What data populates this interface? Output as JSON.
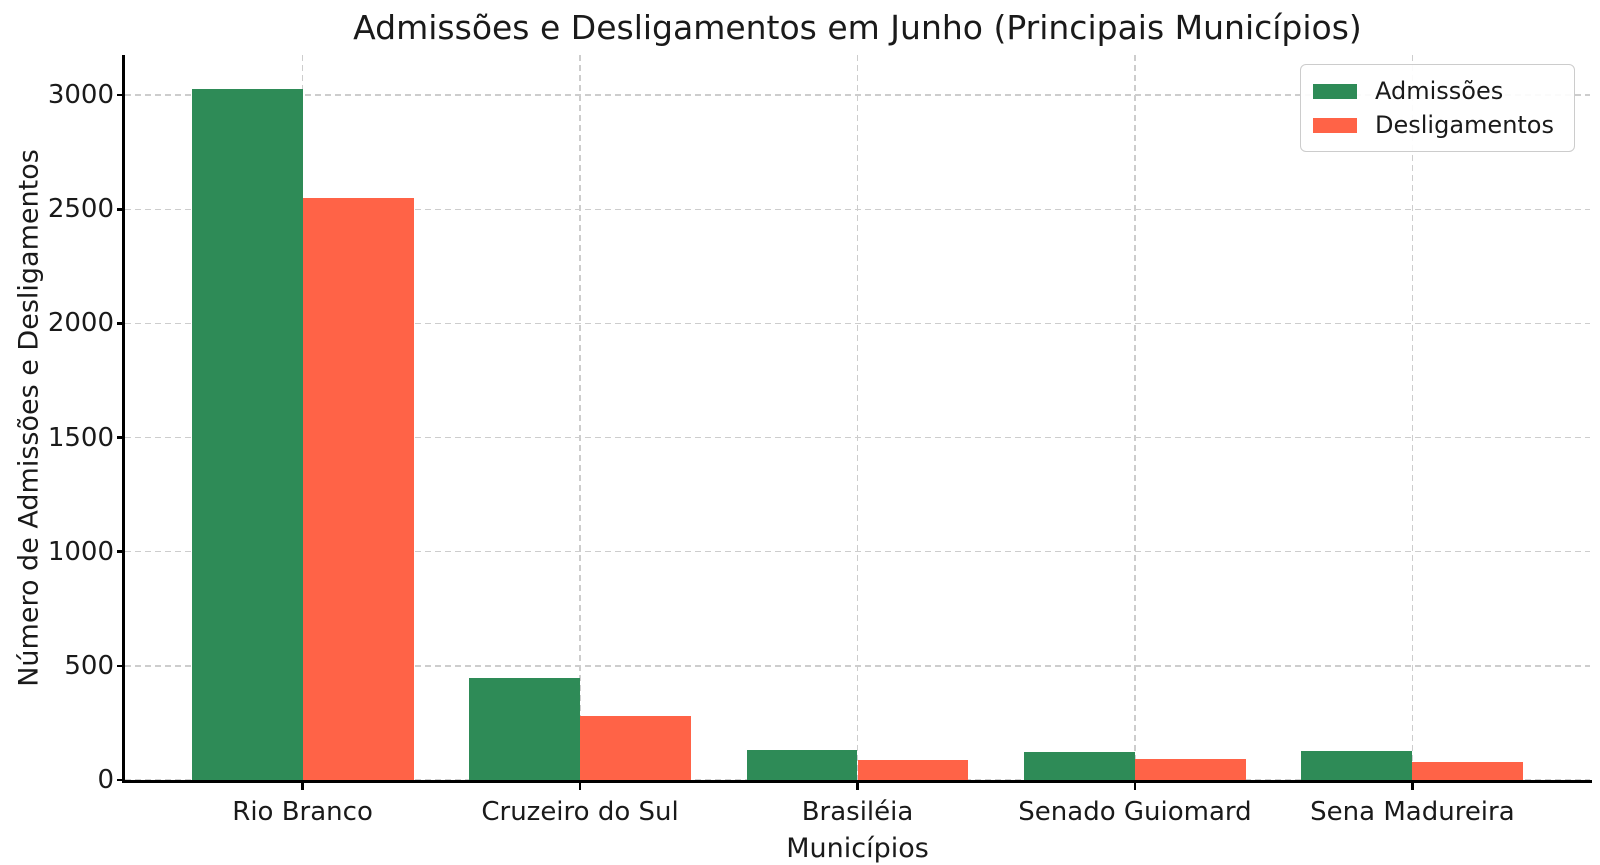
{
  "chart_data": {
    "type": "bar",
    "title": "Admissões e Desligamentos em Junho (Principais Municípios)",
    "xlabel": "Municípios",
    "ylabel": "Número de Admissões e Desligamentos",
    "categories": [
      "Rio Branco",
      "Cruzeiro do Sul",
      "Brasiléia",
      "Senado Guiomard",
      "Sena Madureira"
    ],
    "series": [
      {
        "name": "Admissões",
        "color": "#2e8b57",
        "values": [
          3025,
          445,
          130,
          124,
          127
        ]
      },
      {
        "name": "Desligamentos",
        "color": "#ff6347",
        "values": [
          2550,
          280,
          88,
          90,
          80
        ]
      }
    ],
    "yticks": [
      0,
      500,
      1000,
      1500,
      2000,
      2500,
      3000
    ],
    "ylim": [
      0,
      3176
    ],
    "grid": true,
    "grid_style": "dashed",
    "legend_position": "upper right",
    "bar_width": 0.4
  }
}
